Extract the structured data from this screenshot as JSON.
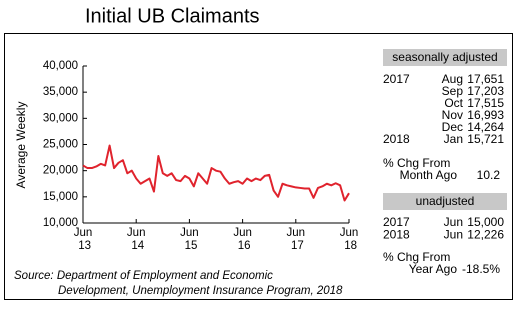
{
  "chart_data": {
    "type": "line",
    "title": "Initial UB Claimants",
    "y_label": "Average Weekly",
    "categories": [
      "Jun 13",
      null,
      null,
      null,
      null,
      null,
      null,
      null,
      null,
      null,
      null,
      null,
      "Jun 14",
      null,
      null,
      null,
      null,
      null,
      null,
      null,
      null,
      null,
      null,
      null,
      "Jun 15",
      null,
      null,
      null,
      null,
      null,
      null,
      null,
      null,
      null,
      null,
      null,
      "Jun 16",
      null,
      null,
      null,
      null,
      null,
      null,
      null,
      null,
      null,
      null,
      null,
      "Jun 17",
      null,
      null,
      null,
      null,
      null,
      null,
      null,
      null,
      null,
      null,
      null,
      "Jun 18"
    ],
    "series": [
      {
        "color": "#e0232d",
        "values": [
          21000,
          20500,
          20500,
          20800,
          21300,
          21000,
          24800,
          20500,
          21500,
          22000,
          19500,
          20000,
          18500,
          17500,
          18000,
          18500,
          16000,
          22800,
          19500,
          19000,
          19500,
          18200,
          18000,
          19000,
          18500,
          17000,
          19500,
          18500,
          17500,
          20500,
          20000,
          19800,
          18500,
          17500,
          17800,
          18000,
          17500,
          18500,
          18000,
          18500,
          18200,
          19000,
          19200,
          16200,
          15000,
          17500,
          17200,
          17000,
          16800,
          16700,
          16600,
          16600,
          14800,
          16700,
          17000,
          17500,
          17200,
          17600,
          17200,
          14300,
          15700
        ]
      }
    ],
    "ylim": [
      10000,
      40000
    ],
    "yticks": [
      {
        "value": 10000,
        "label": "10,000"
      },
      {
        "value": 15000,
        "label": "15,000"
      },
      {
        "value": 20000,
        "label": "20,000"
      },
      {
        "value": 25000,
        "label": "25,000"
      },
      {
        "value": 30000,
        "label": "30,000"
      },
      {
        "value": 35000,
        "label": "35,000"
      },
      {
        "value": 40000,
        "label": "40,000"
      }
    ],
    "grid": false
  },
  "panel": {
    "seasonal": {
      "title": "seasonally adjusted",
      "rows": [
        [
          "2017",
          "Aug",
          "17,651"
        ],
        [
          null,
          "Sep",
          "17,203"
        ],
        [
          null,
          "Oct",
          "17,515"
        ],
        [
          null,
          "Nov",
          "16,993"
        ],
        [
          null,
          "Dec",
          "14,264"
        ],
        [
          "2018",
          "Jan",
          "15,721"
        ]
      ],
      "change_label": [
        "% Chg From",
        "Month Ago"
      ],
      "change_value": "10.2"
    },
    "unadjusted": {
      "title": "unadjusted",
      "rows": [
        [
          "2017",
          "Jun",
          "15,000"
        ],
        [
          "2018",
          "Jun",
          "12,226"
        ]
      ],
      "change_label": [
        "% Chg From",
        "Year Ago"
      ],
      "change_value": "-18.5%"
    }
  },
  "source": [
    "Source:  Department of Employment and Economic",
    "Development, Unemployment Insurance Program, 2018"
  ]
}
